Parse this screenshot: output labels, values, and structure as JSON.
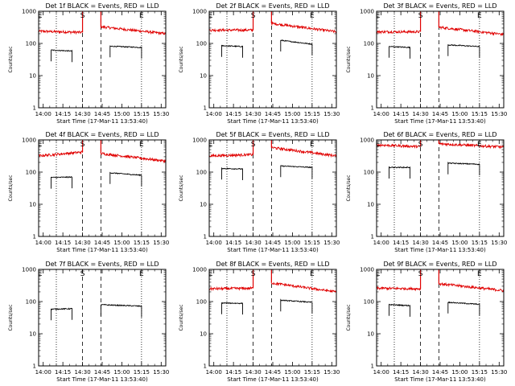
{
  "chart_data": {
    "type": "line",
    "x_tick_labels": [
      "14:00",
      "14:15",
      "14:30",
      "14:45",
      "15:00",
      "15:15",
      "15:30"
    ],
    "x_tick_minutes": [
      0,
      15,
      30,
      45,
      60,
      75,
      90
    ],
    "xlim_minutes": [
      -3.5,
      93.5
    ],
    "xlabel": "Start Time (17-Mar-11 13:53:40)",
    "ylabel": "Counts/sec",
    "y_scale": "log",
    "ylim": [
      1,
      1000
    ],
    "y_tick_labels": [
      "1",
      "10",
      "100",
      "1000"
    ],
    "y_tick_values": [
      1,
      10,
      100,
      1000
    ],
    "series_colors": {
      "events": "#000000",
      "lld": "#e00000"
    },
    "marker_lines": [
      {
        "style": "dotted",
        "minute": 10
      },
      {
        "style": "dashed",
        "minute": 30
      },
      {
        "style": "dashed",
        "minute": 44
      },
      {
        "style": "dotted",
        "minute": 75
      }
    ],
    "markers": [
      {
        "letter": "E",
        "minute": -2.5
      },
      {
        "letter": "S",
        "minute": 30
      },
      {
        "letter": "E",
        "minute": 75
      }
    ],
    "panels": [
      {
        "title": "Det 1f BLACK = Events, RED = LLD",
        "segments": [
          {
            "series": "lld",
            "x0": -3.5,
            "x1": 30,
            "a": 240,
            "b": 220
          },
          {
            "series": "lld",
            "x0": 44,
            "x1": 93.5,
            "a": 330,
            "b": 200
          },
          {
            "series": "events",
            "x0": 6,
            "x1": 22,
            "a": 62,
            "b": 58
          },
          {
            "series": "events",
            "x0": 51,
            "x1": 75,
            "a": 82,
            "b": 75
          }
        ],
        "spikes": [
          30,
          44
        ]
      },
      {
        "title": "Det 2f BLACK = Events, RED = LLD",
        "segments": [
          {
            "series": "lld",
            "x0": -3.5,
            "x1": 30,
            "a": 260,
            "b": 260
          },
          {
            "series": "lld",
            "x0": 44,
            "x1": 93.5,
            "a": 420,
            "b": 230
          },
          {
            "series": "events",
            "x0": 6,
            "x1": 22,
            "a": 85,
            "b": 80
          },
          {
            "series": "events",
            "x0": 51,
            "x1": 75,
            "a": 125,
            "b": 95
          }
        ],
        "spikes": [
          30,
          44
        ]
      },
      {
        "title": "Det 3f BLACK = Events, RED = LLD",
        "segments": [
          {
            "series": "lld",
            "x0": -3.5,
            "x1": 30,
            "a": 230,
            "b": 230
          },
          {
            "series": "lld",
            "x0": 44,
            "x1": 93.5,
            "a": 320,
            "b": 190
          },
          {
            "series": "events",
            "x0": 6,
            "x1": 22,
            "a": 80,
            "b": 75
          },
          {
            "series": "events",
            "x0": 51,
            "x1": 75,
            "a": 90,
            "b": 80
          }
        ],
        "spikes": [
          30,
          44
        ]
      },
      {
        "title": "Det 4f BLACK = Events, RED = LLD",
        "segments": [
          {
            "series": "lld",
            "x0": -3.5,
            "x1": 30,
            "a": 320,
            "b": 420
          },
          {
            "series": "lld",
            "x0": 44,
            "x1": 93.5,
            "a": 380,
            "b": 220
          },
          {
            "series": "events",
            "x0": 6,
            "x1": 22,
            "a": 68,
            "b": 70
          },
          {
            "series": "events",
            "x0": 51,
            "x1": 75,
            "a": 95,
            "b": 80
          }
        ],
        "spikes": [
          30,
          44
        ]
      },
      {
        "title": "Det 5f BLACK = Events, RED = LLD",
        "segments": [
          {
            "series": "lld",
            "x0": -3.5,
            "x1": 30,
            "a": 320,
            "b": 350
          },
          {
            "series": "lld",
            "x0": 44,
            "x1": 93.5,
            "a": 580,
            "b": 320
          },
          {
            "series": "events",
            "x0": 6,
            "x1": 22,
            "a": 130,
            "b": 125
          },
          {
            "series": "events",
            "x0": 51,
            "x1": 75,
            "a": 155,
            "b": 140
          }
        ],
        "spikes": [
          30,
          44
        ]
      },
      {
        "title": "Det 6f BLACK = Events, RED = LLD",
        "segments": [
          {
            "series": "lld",
            "x0": -3.5,
            "x1": 30,
            "a": 700,
            "b": 620
          },
          {
            "series": "lld",
            "x0": 44,
            "x1": 93.5,
            "a": 760,
            "b": 600
          },
          {
            "series": "events",
            "x0": 6,
            "x1": 22,
            "a": 140,
            "b": 140
          },
          {
            "series": "events",
            "x0": 51,
            "x1": 75,
            "a": 190,
            "b": 175
          }
        ],
        "spikes": [
          30,
          44
        ]
      },
      {
        "title": "Det 7f BLACK = Events, RED = LLD",
        "segments": [
          {
            "series": "events",
            "x0": 6,
            "x1": 22,
            "a": 58,
            "b": 60
          },
          {
            "series": "events",
            "x0": 44,
            "x1": 75,
            "a": 80,
            "b": 72
          }
        ],
        "spikes": []
      },
      {
        "title": "Det 8f BLACK = Events, RED = LLD",
        "segments": [
          {
            "series": "lld",
            "x0": -3.5,
            "x1": 30,
            "a": 250,
            "b": 260
          },
          {
            "series": "lld",
            "x0": 44,
            "x1": 93.5,
            "a": 380,
            "b": 200
          },
          {
            "series": "events",
            "x0": 6,
            "x1": 22,
            "a": 90,
            "b": 88
          },
          {
            "series": "events",
            "x0": 51,
            "x1": 75,
            "a": 110,
            "b": 95
          }
        ],
        "spikes": [
          30,
          44
        ]
      },
      {
        "title": "Det 9f BLACK = Events, RED = LLD",
        "segments": [
          {
            "series": "lld",
            "x0": -3.5,
            "x1": 30,
            "a": 260,
            "b": 250
          },
          {
            "series": "lld",
            "x0": 44,
            "x1": 93.5,
            "a": 360,
            "b": 220
          },
          {
            "series": "events",
            "x0": 6,
            "x1": 22,
            "a": 80,
            "b": 75
          },
          {
            "series": "events",
            "x0": 51,
            "x1": 75,
            "a": 95,
            "b": 82
          }
        ],
        "spikes": [
          30,
          44
        ]
      }
    ]
  }
}
